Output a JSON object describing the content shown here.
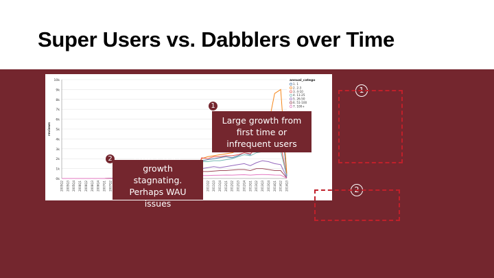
{
  "slide": {
    "title": "Super Users vs. Dabblers over Time",
    "band_color": "#74262e",
    "accent_dash_color": "#c0202a"
  },
  "callouts": [
    {
      "number": "1",
      "text": "Large growth from first time or infrequent users"
    },
    {
      "number": "2",
      "text": "Power User growth stagnating. Perhaps WAU issues"
    }
  ],
  "markers": [
    {
      "number": "1"
    },
    {
      "number": "2"
    }
  ],
  "chart_data": {
    "type": "line",
    "ylabel": "reviews",
    "xlabel": "",
    "ylim": [
      0,
      10000
    ],
    "yticks": [
      "0k",
      "1k",
      "2k",
      "3k",
      "4k",
      "5k",
      "6k",
      "7k",
      "8k",
      "9k",
      "10k"
    ],
    "grid": true,
    "legend_title": "annual_catego",
    "legend_position": "top-right",
    "x": [
      "2005Q2",
      "2005Q3",
      "2005Q4",
      "2006Q1",
      "2006Q2",
      "2006Q3",
      "2006Q4",
      "2007Q1",
      "2007Q2",
      "2007Q3",
      "2007Q4",
      "2008Q1",
      "2008Q2",
      "2008Q3",
      "2008Q4",
      "2009Q1",
      "2009Q2",
      "2009Q3",
      "2009Q4",
      "2010Q1",
      "2010Q2",
      "2010Q3",
      "2010Q4",
      "2011Q1",
      "2011Q2",
      "2011Q3",
      "2011Q4",
      "2012Q1",
      "2012Q2",
      "2012Q3",
      "2012Q4",
      "2013Q1",
      "2013Q2",
      "2013Q3",
      "2013Q4",
      "2014Q1",
      "2014Q2",
      "2014Q3"
    ],
    "series": [
      {
        "name": "1. 1",
        "color": "#4c78a8",
        "values": [
          0,
          0,
          0,
          0,
          0,
          0,
          0,
          0,
          20,
          30,
          40,
          50,
          60,
          80,
          100,
          120,
          150,
          180,
          220,
          260,
          300,
          350,
          500,
          1800,
          1900,
          2000,
          2100,
          2200,
          2100,
          2300,
          2600,
          2400,
          3500,
          4000,
          4500,
          6500,
          6600,
          300
        ]
      },
      {
        "name": "2. 2-3",
        "color": "#f58518",
        "values": [
          0,
          0,
          0,
          0,
          0,
          0,
          0,
          0,
          20,
          30,
          40,
          50,
          60,
          80,
          100,
          120,
          150,
          180,
          220,
          260,
          300,
          400,
          600,
          2000,
          2200,
          2300,
          2400,
          2500,
          2600,
          2800,
          3000,
          2800,
          4200,
          4800,
          5500,
          8600,
          9000,
          500
        ]
      },
      {
        "name": "3. 4-10",
        "color": "#e45756",
        "values": [
          0,
          0,
          0,
          0,
          0,
          0,
          0,
          0,
          20,
          30,
          40,
          50,
          60,
          80,
          100,
          120,
          150,
          180,
          220,
          260,
          300,
          350,
          500,
          2100,
          2000,
          2200,
          2200,
          2300,
          2300,
          2400,
          2600,
          2500,
          3000,
          3200,
          3400,
          3500,
          3400,
          200
        ]
      },
      {
        "name": "4. 11-25",
        "color": "#72b7b2",
        "values": [
          0,
          0,
          0,
          0,
          0,
          0,
          0,
          0,
          20,
          30,
          40,
          50,
          60,
          80,
          100,
          120,
          150,
          180,
          220,
          260,
          300,
          350,
          450,
          1700,
          1700,
          1800,
          1800,
          1900,
          2000,
          2200,
          2400,
          2300,
          2600,
          2700,
          2800,
          2900,
          2800,
          200
        ]
      },
      {
        "name": "5. 26-50",
        "color": "#9467bd",
        "values": [
          0,
          0,
          0,
          0,
          0,
          0,
          0,
          0,
          10,
          20,
          30,
          40,
          50,
          60,
          80,
          100,
          120,
          150,
          180,
          200,
          220,
          250,
          350,
          1000,
          1100,
          1200,
          1100,
          1200,
          1300,
          1400,
          1500,
          1300,
          1600,
          1800,
          1700,
          1500,
          1400,
          100
        ]
      },
      {
        "name": "6. 51-100",
        "color": "#9c4a5a",
        "values": [
          0,
          0,
          0,
          0,
          0,
          0,
          0,
          0,
          10,
          15,
          20,
          25,
          30,
          40,
          50,
          60,
          80,
          100,
          120,
          140,
          160,
          200,
          250,
          700,
          700,
          750,
          800,
          800,
          850,
          900,
          900,
          800,
          1000,
          1000,
          900,
          800,
          800,
          50
        ]
      },
      {
        "name": "7. 100+",
        "color": "#e377c2",
        "values": [
          0,
          0,
          0,
          0,
          0,
          0,
          0,
          0,
          10,
          15,
          20,
          25,
          30,
          35,
          40,
          50,
          60,
          70,
          80,
          90,
          100,
          120,
          150,
          300,
          300,
          320,
          330,
          350,
          340,
          360,
          380,
          340,
          380,
          400,
          380,
          350,
          340,
          30
        ]
      }
    ]
  }
}
